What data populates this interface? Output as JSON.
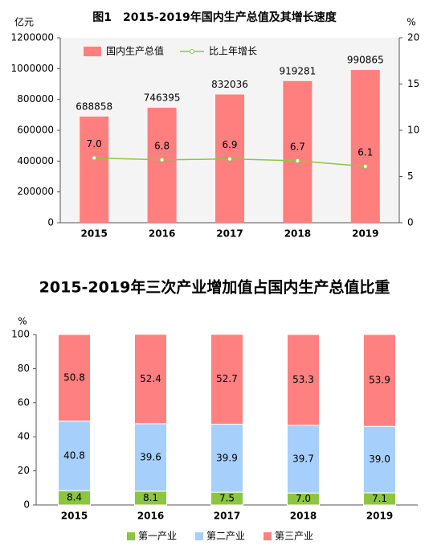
{
  "chart_data": [
    {
      "type": "bar",
      "title": "图1　2015-2019年国内生产总值及其增长速度",
      "y_label": "亿元",
      "y2_label": "%",
      "categories": [
        "2015",
        "2016",
        "2017",
        "2018",
        "2019"
      ],
      "series": [
        {
          "name": "国内生产总值",
          "color": "#ff7f7f",
          "values": [
            688858,
            746395,
            832036,
            919281,
            990865
          ]
        },
        {
          "name": "比上年增长",
          "type": "line",
          "axis": "y2",
          "color": "#8dc63f",
          "values": [
            7.0,
            6.8,
            6.9,
            6.7,
            6.1
          ],
          "value_labels": [
            "7.0",
            "6.8",
            "6.9",
            "6.7",
            "6.1"
          ]
        }
      ],
      "ylim": [
        0,
        1200000
      ],
      "yticks": [
        0,
        200000,
        400000,
        600000,
        800000,
        1000000,
        1200000
      ],
      "y2lim": [
        0,
        20
      ],
      "y2ticks": [
        0,
        5,
        10,
        15,
        20
      ],
      "legend": "top"
    },
    {
      "type": "bar",
      "stacked": true,
      "title": "2015-2019年三次产业增加值占国内生产总值比重",
      "y_label": "%",
      "categories": [
        "2015",
        "2016",
        "2017",
        "2018",
        "2019"
      ],
      "series": [
        {
          "name": "第一产业",
          "color": "#8cc63f",
          "values": [
            8.4,
            8.1,
            7.5,
            7.0,
            7.1
          ],
          "value_labels": [
            "8.4",
            "8.1",
            "7.5",
            "7.0",
            "7.1"
          ]
        },
        {
          "name": "第二产业",
          "color": "#a6cffc",
          "values": [
            40.8,
            39.6,
            39.9,
            39.7,
            39.0
          ],
          "value_labels": [
            "40.8",
            "39.6",
            "39.9",
            "39.7",
            "39.0"
          ]
        },
        {
          "name": "第三产业",
          "color": "#ff8080",
          "values": [
            50.8,
            52.4,
            52.7,
            53.3,
            53.9
          ],
          "value_labels": [
            "50.8",
            "52.4",
            "52.7",
            "53.3",
            "53.9"
          ]
        }
      ],
      "ylim": [
        0,
        100
      ],
      "yticks": [
        0,
        20,
        40,
        60,
        80,
        100
      ],
      "legend": "bottom"
    }
  ]
}
